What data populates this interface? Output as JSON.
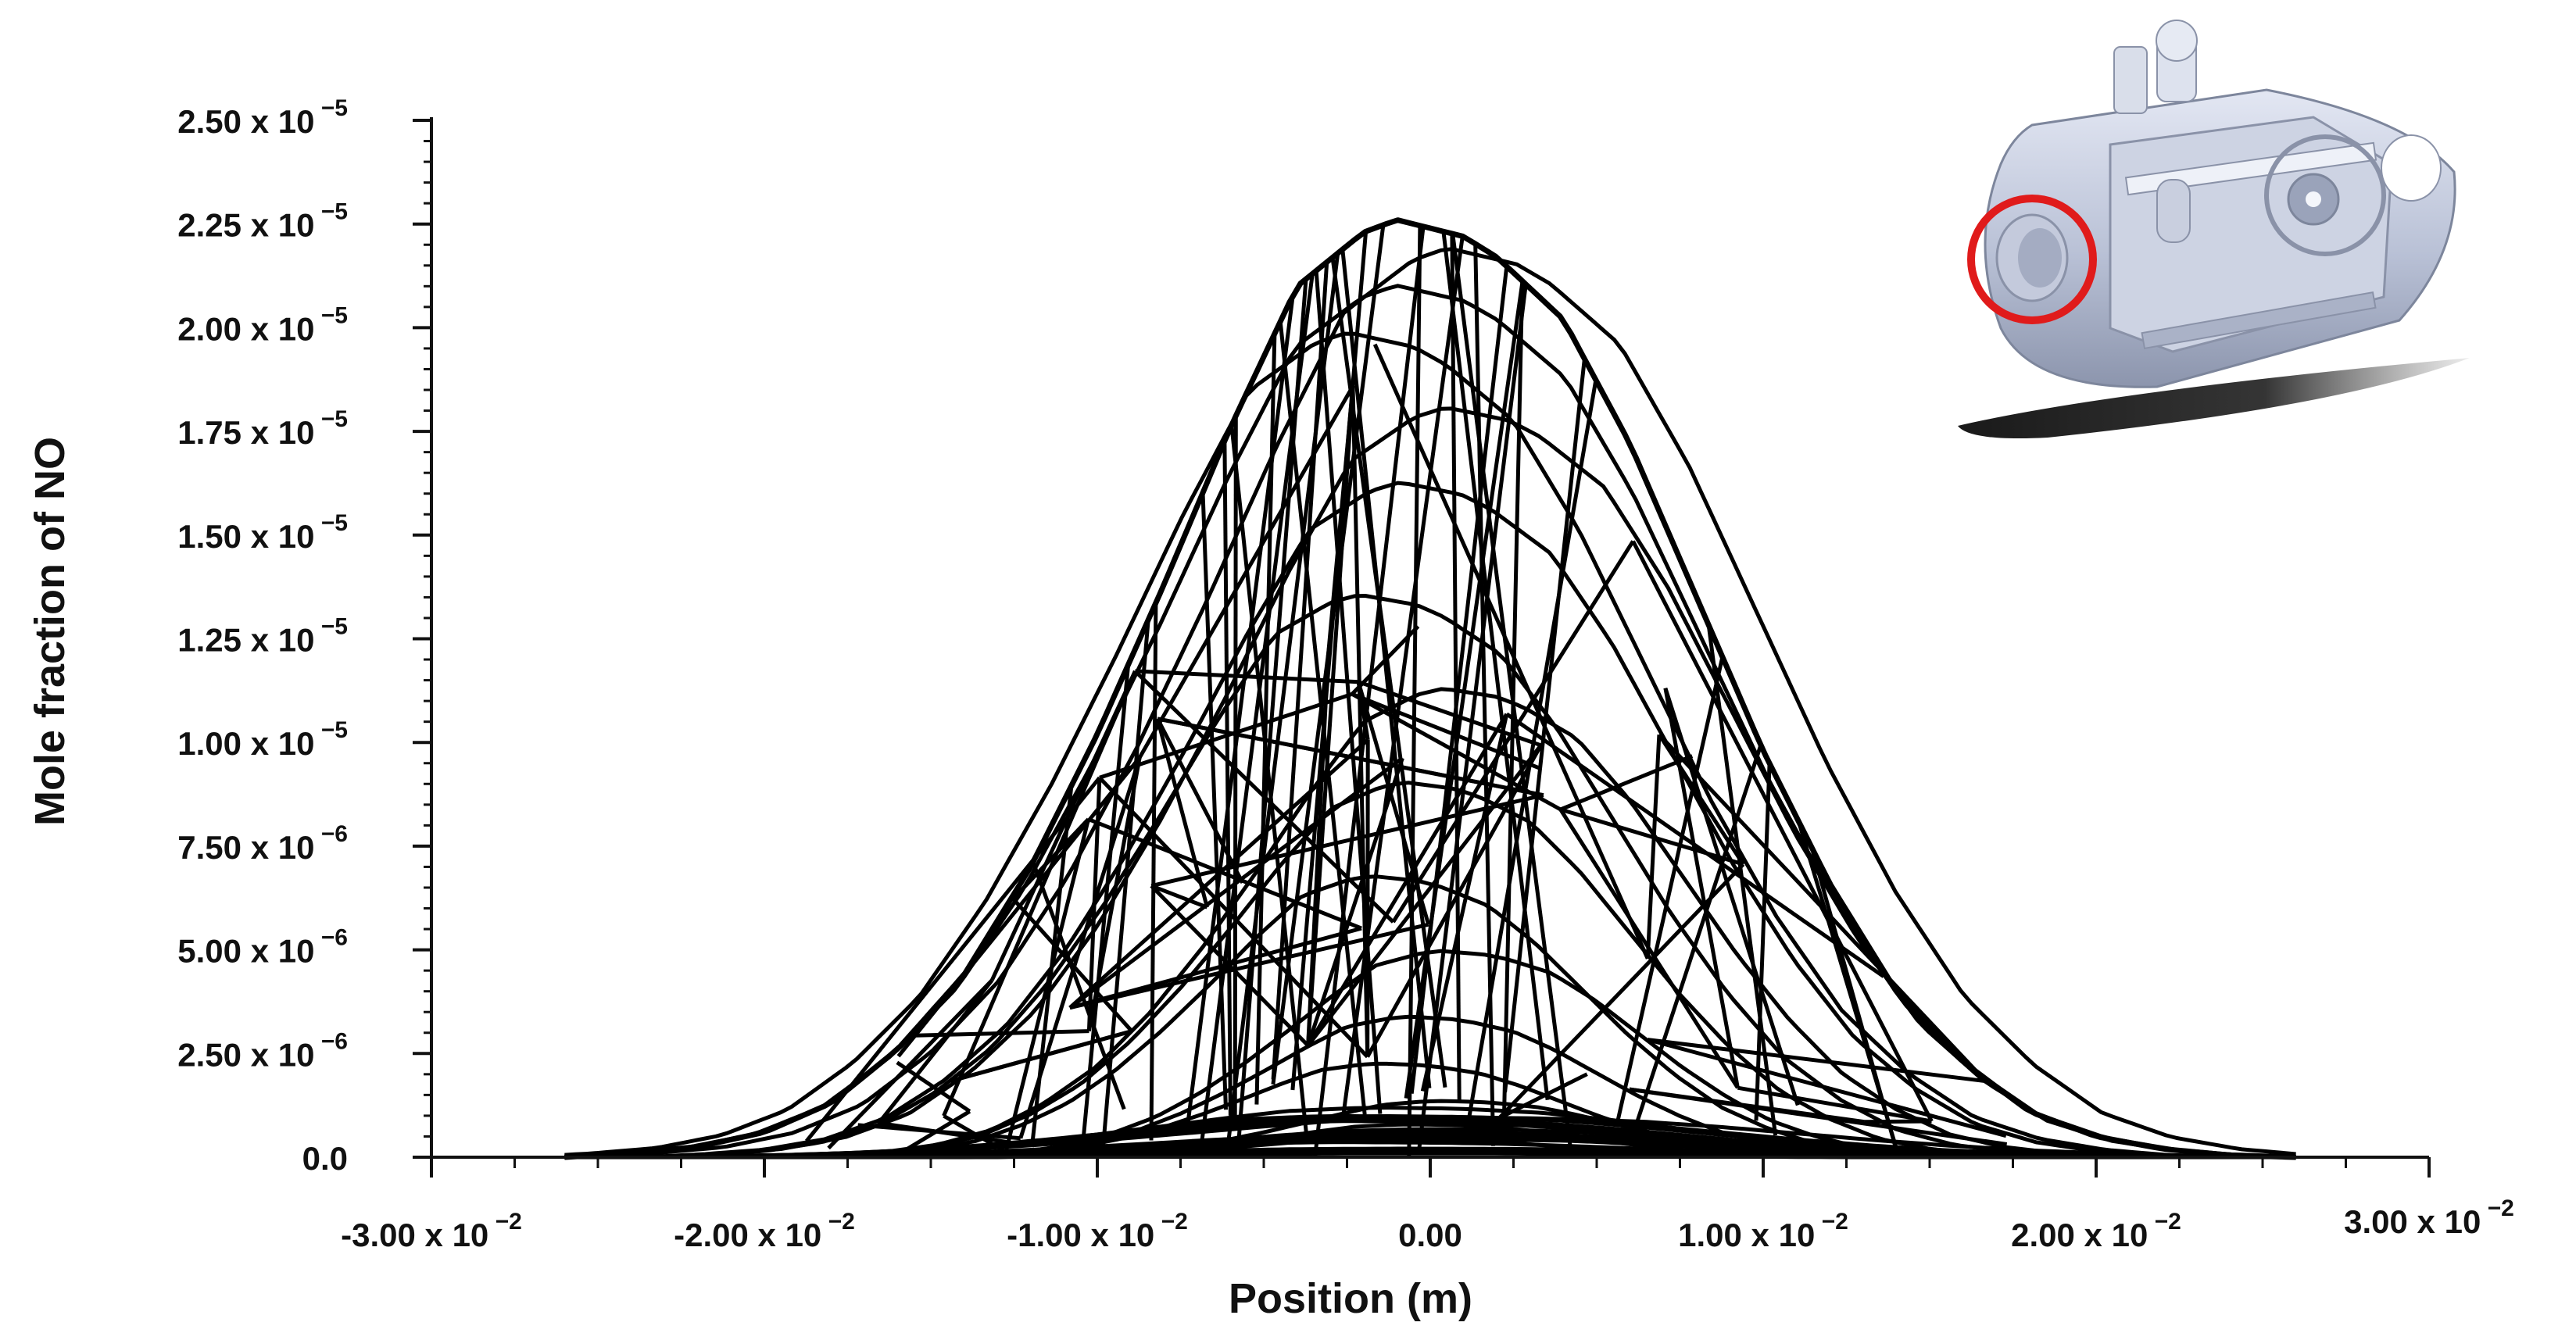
{
  "chart_data": {
    "type": "line",
    "title": "",
    "xlabel": "Position (m)",
    "ylabel": "Mole fraction of NO",
    "xlim": [
      -0.03,
      0.03
    ],
    "ylim": [
      0,
      2.5e-05
    ],
    "grid": false,
    "legend": "none",
    "line_color": "#000000",
    "x_ticks": [
      {
        "value": -0.03,
        "mantissa": "-3.00",
        "base": " x 10",
        "exp": " −2"
      },
      {
        "value": -0.02,
        "mantissa": "-2.00",
        "base": " x 10",
        "exp": " −2"
      },
      {
        "value": -0.01,
        "mantissa": "-1.00",
        "base": " x 10",
        "exp": " −2"
      },
      {
        "value": 0.0,
        "mantissa": "0.00",
        "base": "",
        "exp": ""
      },
      {
        "value": 0.01,
        "mantissa": "1.00",
        "base": " x 10",
        "exp": " −2"
      },
      {
        "value": 0.02,
        "mantissa": "2.00",
        "base": " x 10",
        "exp": " −2"
      },
      {
        "value": 0.03,
        "mantissa": "3.00",
        "base": " x 10",
        "exp": " −2"
      }
    ],
    "y_ticks": [
      {
        "value": 0,
        "mantissa": "0.0",
        "base": "",
        "exp": ""
      },
      {
        "value": 2.5e-06,
        "mantissa": "2.50",
        "base": " x 10",
        "exp": " −6"
      },
      {
        "value": 5e-06,
        "mantissa": "5.00",
        "base": " x 10",
        "exp": " −6"
      },
      {
        "value": 7.5e-06,
        "mantissa": "7.50",
        "base": " x 10",
        "exp": " −6"
      },
      {
        "value": 1e-05,
        "mantissa": "1.00",
        "base": " x 10",
        "exp": " −5"
      },
      {
        "value": 1.25e-05,
        "mantissa": "1.25",
        "base": " x 10",
        "exp": " −5"
      },
      {
        "value": 1.5e-05,
        "mantissa": "1.50",
        "base": " x 10",
        "exp": " −5"
      },
      {
        "value": 1.75e-05,
        "mantissa": "1.75",
        "base": " x 10",
        "exp": " −5"
      },
      {
        "value": 2e-05,
        "mantissa": "2.00",
        "base": " x 10",
        "exp": " −5"
      },
      {
        "value": 2.25e-05,
        "mantissa": "2.25",
        "base": " x 10",
        "exp": " −5"
      },
      {
        "value": 2.5e-05,
        "mantissa": "2.50",
        "base": " x 10",
        "exp": " −5"
      }
    ],
    "profile": {
      "x": [
        -0.026,
        -0.024,
        -0.022,
        -0.02,
        -0.018,
        -0.016,
        -0.014,
        -0.012,
        -0.01,
        -0.008,
        -0.006,
        -0.004,
        -0.002,
        -0.001,
        0.0,
        0.001,
        0.002,
        0.004,
        0.006,
        0.008,
        0.01,
        0.012,
        0.014,
        0.016,
        0.018,
        0.02,
        0.022,
        0.024,
        0.026
      ],
      "y": [
        0,
        1e-07,
        2.5e-07,
        6e-07,
        1.3e-06,
        2.6e-06,
        4.4e-06,
        7e-06,
        1.02e-05,
        1.38e-05,
        1.76e-05,
        2.1e-05,
        2.23e-05,
        2.26e-05,
        2.24e-05,
        2.22e-05,
        2.17e-05,
        2.02e-05,
        1.72e-05,
        1.35e-05,
        9.8e-06,
        6.6e-06,
        4e-06,
        2.3e-06,
        1.1e-06,
        5e-07,
        2e-07,
        5e-08,
        0
      ]
    },
    "inset_image": "combustor-cutaway-illustration",
    "highlight_color": "#e01b1b"
  }
}
